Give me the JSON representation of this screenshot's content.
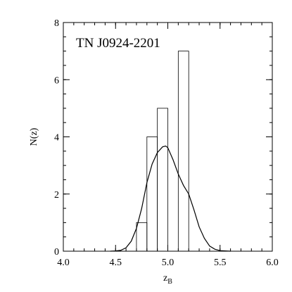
{
  "chart_data": {
    "type": "bar",
    "title": "TN J0924-2201",
    "xlabel": "z",
    "xlabel_sub": "B",
    "ylabel": "N(z)",
    "xlim": [
      4.0,
      6.0
    ],
    "ylim": [
      0,
      8
    ],
    "xticks": [
      4.0,
      4.5,
      5.0,
      5.5,
      6.0
    ],
    "xtick_labels": [
      "4.0",
      "4.5",
      "5.0",
      "5.5",
      "6.0"
    ],
    "yticks": [
      0,
      2,
      4,
      6,
      8
    ],
    "ytick_labels": [
      "0",
      "2",
      "4",
      "6",
      "8"
    ],
    "grid": false,
    "series": [
      {
        "type": "histogram",
        "bins": [
          {
            "x0": 4.7,
            "x1": 4.8,
            "count": 1
          },
          {
            "x0": 4.8,
            "x1": 4.9,
            "count": 4
          },
          {
            "x0": 4.9,
            "x1": 5.0,
            "count": 5
          },
          {
            "x0": 5.0,
            "x1": 5.1,
            "count": 0
          },
          {
            "x0": 5.1,
            "x1": 5.2,
            "count": 7
          }
        ]
      },
      {
        "type": "line",
        "x": [
          4.45,
          4.5,
          4.55,
          4.6,
          4.65,
          4.7,
          4.75,
          4.8,
          4.85,
          4.9,
          4.95,
          4.98,
          5.0,
          5.05,
          5.1,
          5.15,
          5.2,
          5.25,
          5.3,
          5.35,
          5.4,
          5.45,
          5.5,
          5.55,
          5.6
        ],
        "y": [
          0.0,
          0.01,
          0.03,
          0.12,
          0.35,
          0.8,
          1.5,
          2.4,
          3.05,
          3.45,
          3.65,
          3.68,
          3.62,
          3.2,
          2.7,
          2.3,
          2.0,
          1.45,
          0.85,
          0.45,
          0.18,
          0.07,
          0.02,
          0.01,
          0.0
        ]
      }
    ]
  }
}
